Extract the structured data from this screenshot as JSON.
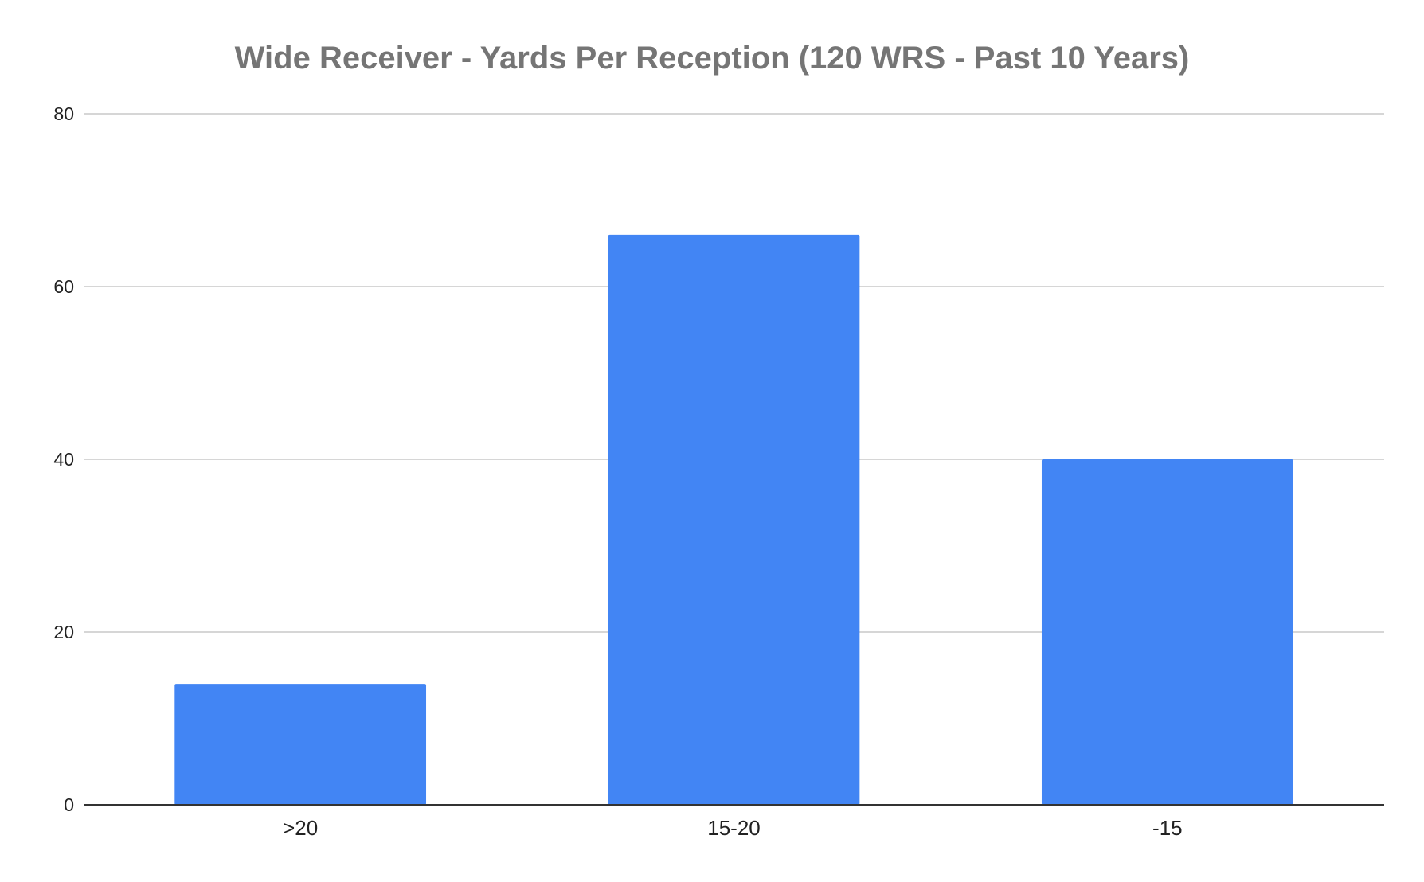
{
  "chart_data": {
    "type": "bar",
    "title": "Wide Receiver - Yards Per Reception (120 WRS - Past 10 Years)",
    "xlabel": "",
    "ylabel": "",
    "categories": [
      ">20",
      "15-20",
      "-15"
    ],
    "values": [
      14,
      66,
      40
    ],
    "ylim": [
      0,
      80
    ],
    "yticks": [
      0,
      20,
      40,
      60,
      80
    ],
    "grid": true,
    "legend": "none",
    "bar_color": "#4285f4"
  }
}
